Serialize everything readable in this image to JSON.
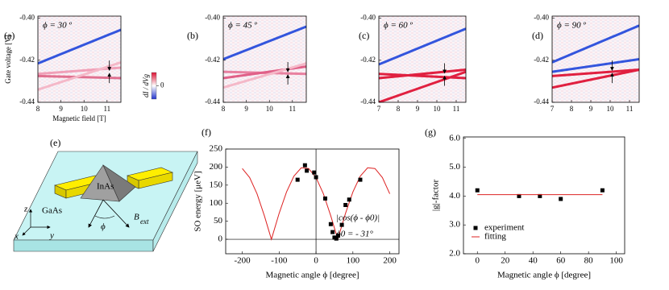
{
  "chart_data": [
    {
      "type": "heatmap",
      "label": "(a)",
      "title": "ϕ = 30 º",
      "xlabel": "Magnetic field [T]",
      "ylabel": "Gate voltage [V]",
      "xlim": [
        8,
        11.6
      ],
      "xticks": [
        8,
        9,
        10,
        11
      ],
      "ylim": [
        -0.44,
        -0.399
      ],
      "yticks": [
        {
          "value": -0.4,
          "label": "-0.40"
        },
        {
          "value": -0.42,
          "label": "-0.42"
        },
        {
          "value": -0.44,
          "label": "-0.44"
        }
      ],
      "colorbar_label": "dI / dVg",
      "clim": [
        -1,
        1
      ],
      "colorbar_ticks": [
        0
      ],
      "traces": [
        {
          "color": "#3355dd",
          "x": [
            8,
            11.6
          ],
          "values": [
            -0.4215,
            -0.4055
          ]
        },
        {
          "color": "#f0a0b8",
          "x": [
            8,
            11.6
          ],
          "values": [
            -0.4265,
            -0.4235
          ]
        },
        {
          "color": "#e07090",
          "x": [
            8,
            11.6
          ],
          "values": [
            -0.4275,
            -0.4285
          ]
        },
        {
          "color": "#f4b8c8",
          "x": [
            8,
            11.6
          ],
          "values": [
            -0.434,
            -0.421
          ]
        }
      ],
      "arrow": {
        "x": 11.1,
        "y": -0.4255
      }
    },
    {
      "type": "heatmap",
      "label": "(b)",
      "title": "ϕ = 45 º",
      "xlim": [
        8,
        11.6
      ],
      "xticks": [
        8,
        9,
        10,
        11
      ],
      "ylim": [
        -0.44,
        -0.399
      ],
      "yticks": [
        {
          "value": -0.4,
          "label": "-0.40"
        },
        {
          "value": -0.42,
          "label": "-0.42"
        },
        {
          "value": -0.44,
          "label": "-0.44"
        }
      ],
      "traces": [
        {
          "color": "#3355dd",
          "x": [
            8,
            11.6
          ],
          "values": [
            -0.4195,
            -0.404
          ]
        },
        {
          "color": "#e880a0",
          "x": [
            8,
            11.6
          ],
          "values": [
            -0.4255,
            -0.4265
          ]
        },
        {
          "color": "#e06088",
          "x": [
            8,
            11.6
          ],
          "values": [
            -0.4285,
            -0.423
          ]
        },
        {
          "color": "#f4b8c8",
          "x": [
            8,
            11.6
          ],
          "values": [
            -0.433,
            -0.4215
          ]
        }
      ],
      "arrow": {
        "x": 10.8,
        "y": -0.4262
      }
    },
    {
      "type": "heatmap",
      "label": "(c)",
      "title": "ϕ = 60 º",
      "xlim": [
        7,
        11.5
      ],
      "xticks": [
        7,
        8,
        9,
        10,
        11
      ],
      "ylim": [
        -0.44,
        -0.399
      ],
      "yticks": [
        {
          "value": -0.4,
          "label": "-0.40"
        },
        {
          "value": -0.42,
          "label": "-0.42"
        },
        {
          "value": -0.44,
          "label": "-0.44"
        }
      ],
      "traces": [
        {
          "color": "#3355dd",
          "x": [
            7,
            11.5
          ],
          "values": [
            -0.422,
            -0.405
          ]
        },
        {
          "color": "#e02040",
          "x": [
            7,
            11.5
          ],
          "values": [
            -0.4265,
            -0.4285
          ]
        },
        {
          "color": "#e02040",
          "x": [
            7,
            11.5
          ],
          "values": [
            -0.4285,
            -0.4245
          ]
        },
        {
          "color": "#e02040",
          "x": [
            7,
            11.5
          ],
          "values": [
            -0.44,
            -0.4255
          ]
        }
      ],
      "arrow": {
        "x": 10.4,
        "y": -0.4268
      }
    },
    {
      "type": "heatmap",
      "label": "(d)",
      "title": "ϕ = 90 º",
      "xlim": [
        7,
        11.5
      ],
      "xticks": [
        7,
        8,
        9,
        10,
        11
      ],
      "ylim": [
        -0.44,
        -0.399
      ],
      "yticks": [
        {
          "value": -0.4,
          "label": "-0.40"
        },
        {
          "value": -0.42,
          "label": "-0.42"
        },
        {
          "value": -0.44,
          "label": "-0.44"
        }
      ],
      "traces": [
        {
          "color": "#3355dd",
          "x": [
            7,
            11.5
          ],
          "values": [
            -0.421,
            -0.4035
          ]
        },
        {
          "color": "#3355dd",
          "x": [
            7,
            11.5
          ],
          "values": [
            -0.4255,
            -0.4195
          ]
        },
        {
          "color": "#e02040",
          "x": [
            7,
            11.5
          ],
          "values": [
            -0.4275,
            -0.4245
          ]
        },
        {
          "color": "#e02040",
          "x": [
            7,
            11.5
          ],
          "values": [
            -0.433,
            -0.4245
          ]
        }
      ],
      "arrow": {
        "x": 10.1,
        "y": -0.4255
      }
    },
    {
      "type": "scatter",
      "label": "(f)",
      "xlabel": "Magnetic angle ϕ [degree]",
      "ylabel": "SO energy [μeV]",
      "xlim": [
        -245,
        225
      ],
      "xticks": [
        -200,
        -100,
        0,
        100,
        200
      ],
      "ylim": [
        -40,
        250
      ],
      "yticks": [
        0,
        50,
        100,
        150,
        200,
        250
      ],
      "annotations": [
        "|cos(ϕ - ϕ0)|",
        "ϕ0 = - 31°"
      ],
      "curve": {
        "color": "#dd2222",
        "x": [
          -200,
          -180,
          -160,
          -140,
          -121,
          -100,
          -80,
          -60,
          -40,
          -20,
          0,
          20,
          40,
          59,
          80,
          100,
          120,
          140,
          160,
          180,
          200
        ],
        "values": [
          196,
          171,
          126,
          65,
          0,
          72,
          131,
          175,
          198,
          196,
          171,
          126,
          65,
          0,
          72,
          131,
          175,
          198,
          196,
          171,
          126
        ]
      },
      "points": {
        "color": "#000000",
        "x": [
          -50,
          -30,
          -25,
          -5,
          0,
          25,
          40,
          45,
          50,
          55,
          60,
          70,
          80,
          90,
          120
        ],
        "values": [
          165,
          205,
          190,
          185,
          172,
          113,
          42,
          20,
          5,
          2,
          10,
          40,
          95,
          110,
          165
        ]
      }
    },
    {
      "type": "scatter",
      "label": "(g)",
      "xlabel": "Magnetic angle ϕ [degree]",
      "ylabel": "|g|-factor",
      "xlim": [
        -10,
        106
      ],
      "xticks": [
        0,
        20,
        40,
        60,
        80,
        100
      ],
      "ylim": [
        2,
        6.05
      ],
      "yticks": [
        {
          "value": 2,
          "label": "2.0"
        },
        {
          "value": 3,
          "label": "3.0"
        },
        {
          "value": 4,
          "label": "4.0"
        },
        {
          "value": 5,
          "label": "5.0"
        },
        {
          "value": 6,
          "label": "6.0"
        }
      ],
      "series": [
        {
          "name": "experiment",
          "kind": "points",
          "color": "#000000",
          "x": [
            0,
            30,
            45,
            60,
            90
          ],
          "values": [
            4.2,
            4.0,
            4.0,
            3.9,
            4.2
          ]
        },
        {
          "name": "fitting",
          "kind": "line",
          "color": "#dd2222",
          "x": [
            0,
            90
          ],
          "values": [
            4.05,
            4.05
          ]
        }
      ]
    }
  ],
  "diagram": {
    "label": "(e)",
    "dot": "InAs",
    "substrate": "GaAs",
    "axis_z": "z",
    "axis_x": "x",
    "axis_y": "y",
    "angle": "ϕ",
    "field": "B",
    "field_sub": "ext"
  }
}
